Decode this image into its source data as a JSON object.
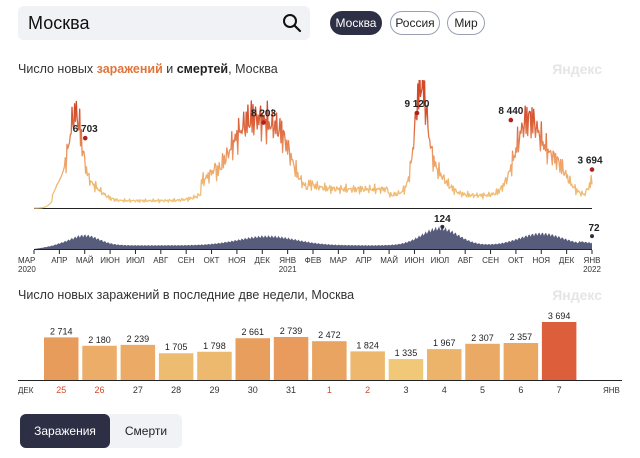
{
  "search": {
    "value": "Москва"
  },
  "regions": [
    {
      "label": "Москва",
      "active": true
    },
    {
      "label": "Россия",
      "active": false
    },
    {
      "label": "Мир",
      "active": false
    }
  ],
  "chart1": {
    "title_pre": "Число новых ",
    "title_infections": "заражений",
    "title_mid": " и ",
    "title_deaths": "смертей",
    "title_post": ", Москва",
    "brand": "Яндекс"
  },
  "chart2": {
    "title": "Число новых заражений в последние две недели, Москва",
    "brand": "Яндекс"
  },
  "tabs": {
    "infections": "Заражения",
    "deaths": "Смерти"
  },
  "colors": {
    "accent": "#2d2f45",
    "infections_light": "#f0c97a",
    "infections_dark": "#d34a2a",
    "deaths": "#585c7c",
    "holiday": "#d34a2a"
  },
  "chart_data": [
    {
      "type": "area",
      "series": [
        {
          "name": "заражений",
          "peaks": [
            {
              "x": "2020-05",
              "value": 6703
            },
            {
              "x": "2020-12",
              "value": 8203
            },
            {
              "x": "2021-06",
              "value": 9120
            },
            {
              "x": "2021-10",
              "value": 8440
            },
            {
              "x": "2022-01",
              "value": 3694
            }
          ]
        },
        {
          "name": "смертей",
          "peaks": [
            {
              "x": "2021-07",
              "value": 124
            },
            {
              "x": "2022-01",
              "value": 72
            }
          ]
        }
      ],
      "x_ticks": [
        "МАР\n2020",
        "АПР",
        "МАЙ",
        "ИЮН",
        "ИЮЛ",
        "АВГ",
        "СЕН",
        "ОКТ",
        "НОЯ",
        "ДЕК",
        "ЯНВ\n2021",
        "ФЕВ",
        "МАР",
        "АПР",
        "МАЙ",
        "ИЮН",
        "ИЮЛ",
        "АВГ",
        "СЕН",
        "ОКТ",
        "НОЯ",
        "ДЕК",
        "ЯНВ\n2022"
      ]
    },
    {
      "type": "bar",
      "categories": [
        "25",
        "26",
        "27",
        "28",
        "29",
        "30",
        "31",
        "1",
        "2",
        "3",
        "4",
        "5",
        "6",
        "7"
      ],
      "holidays": [
        "25",
        "26",
        "1",
        "2"
      ],
      "values": [
        2714,
        2180,
        2239,
        1705,
        1798,
        2661,
        2739,
        2472,
        1824,
        1335,
        1967,
        2307,
        2357,
        3694
      ],
      "value_labels": [
        "2 714",
        "2 180",
        "2 239",
        "1 705",
        "1 798",
        "2 661",
        "2 739",
        "2 472",
        "1 824",
        "1 335",
        "1 967",
        "2 307",
        "2 357",
        "3 694"
      ],
      "month_start": "ДЕК",
      "month_end": "ЯНВ"
    }
  ]
}
